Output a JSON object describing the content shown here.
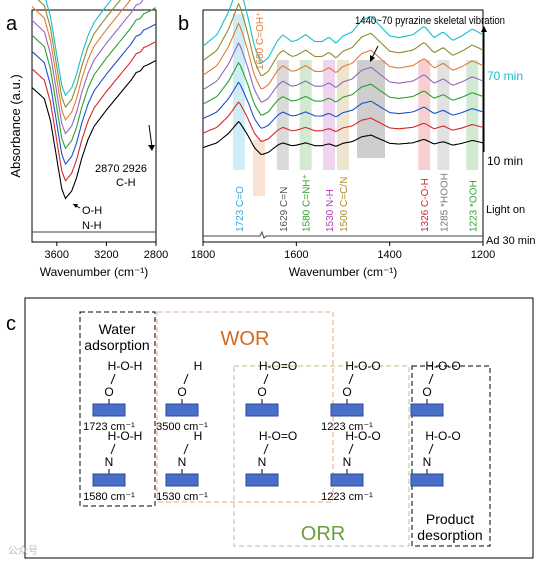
{
  "panels": {
    "a": {
      "label": "a"
    },
    "b": {
      "label": "b"
    },
    "c": {
      "label": "c"
    }
  },
  "chart_data": [
    {
      "panel": "a",
      "type": "line",
      "xlabel": "Wavenumber (cm⁻¹)",
      "ylabel": "Absorbance (a.u.)",
      "xlim": [
        3800,
        2800
      ],
      "x_reversed": true,
      "xticks": [
        "3600",
        "3200",
        "2800"
      ],
      "annotations": [
        "2870 2926",
        "C-H",
        "O-H",
        "N-H"
      ],
      "series_colors": [
        "#000000",
        "#d62728",
        "#1f4fd1",
        "#2ca02c",
        "#9467bd",
        "#e07b39",
        "#8c8c2d",
        "#17becf"
      ],
      "baseline": [
        [
          3800,
          -3.2
        ],
        [
          3600,
          -3.2
        ],
        [
          3200,
          -3.2
        ],
        [
          2800,
          -3.2
        ]
      ],
      "profile": [
        [
          3800,
          1.5
        ],
        [
          3700,
          1.35
        ],
        [
          3650,
          1.05
        ],
        [
          3600,
          0.55
        ],
        [
          3560,
          0.15
        ],
        [
          3530,
          0.02
        ],
        [
          3480,
          0.12
        ],
        [
          3440,
          0.3
        ],
        [
          3400,
          0.55
        ],
        [
          3350,
          0.8
        ],
        [
          3300,
          0.98
        ],
        [
          3200,
          1.2
        ],
        [
          3100,
          1.4
        ],
        [
          3000,
          1.6
        ],
        [
          2960,
          1.7
        ],
        [
          2926,
          1.72
        ],
        [
          2900,
          1.78
        ],
        [
          2870,
          1.8
        ],
        [
          2800,
          1.86
        ]
      ]
    },
    {
      "panel": "b",
      "type": "line",
      "xlabel": "Wavenumber (cm⁻¹)",
      "xlim": [
        1800,
        1200
      ],
      "x_reversed": true,
      "xticks": [
        "1800",
        "1600",
        "1400",
        "1200"
      ],
      "series_labels": [
        "70 min",
        "10 min",
        "Light on",
        "Ad 30 min"
      ],
      "series_colors": [
        "#000000",
        "#d62728",
        "#1f4fd1",
        "#2ca02c",
        "#9467bd",
        "#e07b39",
        "#8c8c2d",
        "#17becf"
      ],
      "peaks": [
        {
          "x": 1723,
          "label": "1723  C=O",
          "color": "#2aa7d6"
        },
        {
          "x": 1680,
          "label": "1680 C=OH⁺",
          "color": "#e07b39"
        },
        {
          "x": 1629,
          "label": "1629 C=N",
          "color": "#555555"
        },
        {
          "x": 1580,
          "label": "1580 C=NH⁺",
          "color": "#2ca02c"
        },
        {
          "x": 1530,
          "label": "1530  N-H",
          "color": "#b03ab8"
        },
        {
          "x": 1500,
          "label": "1500 C=C/N",
          "color": "#b08a2d"
        },
        {
          "x": 1440,
          "label": "1440~70 pyrazine skeletal vibration",
          "color": "#222222"
        },
        {
          "x": 1326,
          "label": "1326 C-O-H",
          "color": "#d62728"
        },
        {
          "x": 1285,
          "label": "1285 *HOOH",
          "color": "#777777"
        },
        {
          "x": 1223,
          "label": "1223 *OOH",
          "color": "#2ca02c"
        }
      ],
      "profile": [
        [
          1800,
          0.1
        ],
        [
          1770,
          0.3
        ],
        [
          1745,
          0.7
        ],
        [
          1723,
          1.2
        ],
        [
          1705,
          0.65
        ],
        [
          1690,
          0.1
        ],
        [
          1675,
          -0.2
        ],
        [
          1660,
          -0.1
        ],
        [
          1640,
          0.2
        ],
        [
          1629,
          0.3
        ],
        [
          1610,
          0.18
        ],
        [
          1600,
          0.2
        ],
        [
          1580,
          0.3
        ],
        [
          1560,
          0.18
        ],
        [
          1545,
          0.18
        ],
        [
          1530,
          0.26
        ],
        [
          1515,
          0.15
        ],
        [
          1500,
          0.28
        ],
        [
          1480,
          0.35
        ],
        [
          1460,
          0.55
        ],
        [
          1440,
          0.62
        ],
        [
          1420,
          0.45
        ],
        [
          1400,
          0.28
        ],
        [
          1380,
          0.25
        ],
        [
          1350,
          0.3
        ],
        [
          1326,
          0.45
        ],
        [
          1305,
          0.25
        ],
        [
          1285,
          0.35
        ],
        [
          1265,
          0.2
        ],
        [
          1245,
          0.28
        ],
        [
          1223,
          0.4
        ],
        [
          1200,
          0.3
        ]
      ]
    }
  ],
  "scheme": {
    "titles": {
      "water": "Water",
      "water2": "adsorption",
      "wor": "WOR",
      "orr": "ORR",
      "product": "Product",
      "product2": "desorption"
    },
    "molecules": {
      "m1": {
        "formula": "H-O-H",
        "atom": "O",
        "caption": "1723 cm⁻¹"
      },
      "m2": {
        "formula": "H-O-H",
        "atom": "N",
        "caption": "1580 cm⁻¹"
      },
      "m3": {
        "formula": "H",
        "atom": "O",
        "caption": "3500 cm⁻¹"
      },
      "m4": {
        "formula": "H",
        "atom": "N",
        "caption": "1530 cm⁻¹"
      },
      "m5": {
        "formula": "H-O=O",
        "atom": "O",
        "caption": ""
      },
      "m6": {
        "formula": "H-O=O",
        "atom": "N",
        "caption": ""
      },
      "m7": {
        "formula": "H-O-O",
        "atom": "O",
        "caption": "1223 cm⁻¹"
      },
      "m8": {
        "formula": "H-O-O",
        "atom": "N",
        "caption": "1223 cm⁻¹"
      },
      "m9": {
        "formula": "H-O-O",
        "atom": "O",
        "caption": ""
      },
      "m10": {
        "formula": "H-O-O",
        "atom": "N",
        "caption": ""
      }
    },
    "watermark": "公众号"
  }
}
